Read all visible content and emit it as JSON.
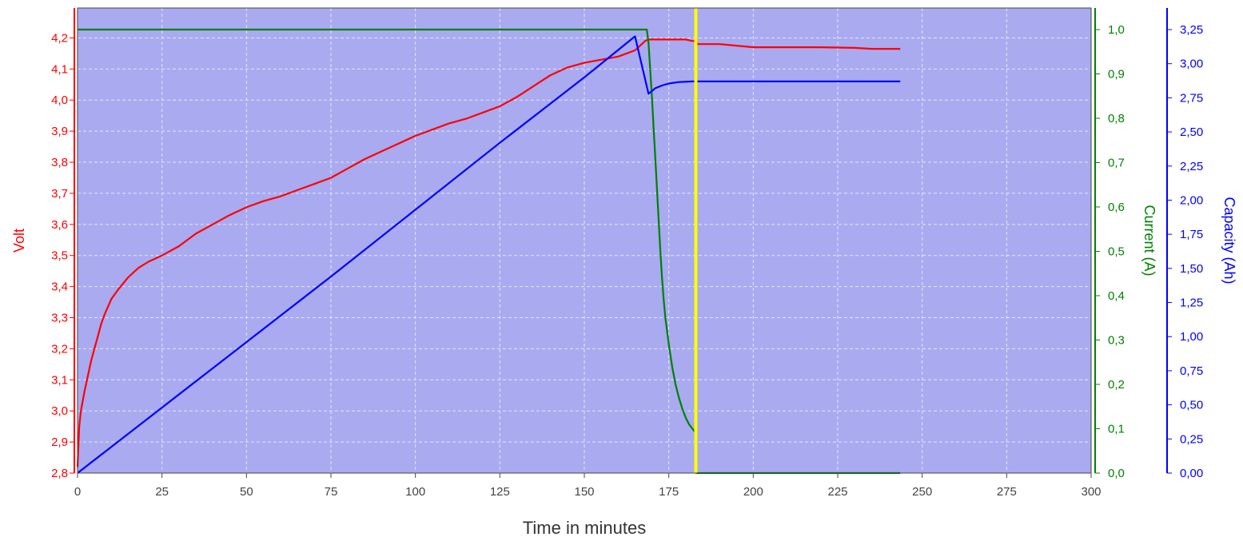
{
  "chart_data": {
    "type": "line",
    "xlabel": "Time in minutes",
    "xlim": [
      0,
      300
    ],
    "x_ticks": [
      "0",
      "25",
      "50",
      "75",
      "100",
      "125",
      "150",
      "175",
      "200",
      "225",
      "250",
      "275",
      "300"
    ],
    "x_tick_values": [
      0,
      25,
      50,
      75,
      100,
      125,
      150,
      175,
      200,
      225,
      250,
      275,
      300
    ],
    "grid": true,
    "axes": {
      "volt": {
        "label": "Volt",
        "color": "#ff0000",
        "side": "left",
        "ylim": [
          2.8,
          4.25
        ],
        "ticks": [
          "2,8",
          "2,9",
          "3,0",
          "3,1",
          "3,2",
          "3,3",
          "3,4",
          "3,5",
          "3,6",
          "3,7",
          "3,8",
          "3,9",
          "4,0",
          "4,1",
          "4,2"
        ],
        "tick_values": [
          2.8,
          2.9,
          3.0,
          3.1,
          3.2,
          3.3,
          3.4,
          3.5,
          3.6,
          3.7,
          3.8,
          3.9,
          4.0,
          4.1,
          4.2
        ]
      },
      "current": {
        "label": "Current (A)",
        "color": "#008000",
        "side": "right",
        "ylim": [
          0,
          1.0
        ],
        "ticks": [
          "0,0",
          "0,1",
          "0,2",
          "0,3",
          "0,4",
          "0,5",
          "0,6",
          "0,7",
          "0,8",
          "0,9",
          "1,0"
        ],
        "tick_values": [
          0,
          0.1,
          0.2,
          0.3,
          0.4,
          0.5,
          0.6,
          0.7,
          0.8,
          0.9,
          1.0
        ]
      },
      "capacity": {
        "label": "Capacity (Ah)",
        "color": "#0000ff",
        "side": "right",
        "ylim": [
          0,
          3.25
        ],
        "ticks": [
          "0,00",
          "0,25",
          "0,50",
          "0,75",
          "1,00",
          "1,25",
          "1,50",
          "1,75",
          "2,00",
          "2,25",
          "2,50",
          "2,75",
          "3,00",
          "3,25"
        ],
        "tick_values": [
          0,
          0.25,
          0.5,
          0.75,
          1.0,
          1.25,
          1.5,
          1.75,
          2.0,
          2.25,
          2.5,
          2.75,
          3.0,
          3.25
        ]
      }
    },
    "series": [
      {
        "axis": "volt",
        "color": "#ff0000",
        "x": [
          0,
          0.5,
          1,
          2,
          3,
          4,
          5,
          6,
          7,
          8,
          10,
          12,
          15,
          18,
          21,
          25,
          30,
          35,
          40,
          45,
          50,
          55,
          60,
          65,
          70,
          75,
          80,
          85,
          90,
          95,
          100,
          105,
          110,
          115,
          120,
          125,
          130,
          135,
          140,
          145,
          150,
          155,
          160,
          165,
          168,
          169,
          170,
          172,
          175,
          180,
          182,
          183,
          183.5,
          185,
          190,
          200,
          210,
          220,
          230,
          235,
          240,
          243.5
        ],
        "y": [
          2.82,
          2.95,
          3.0,
          3.06,
          3.11,
          3.16,
          3.2,
          3.24,
          3.28,
          3.31,
          3.36,
          3.39,
          3.43,
          3.46,
          3.48,
          3.5,
          3.53,
          3.57,
          3.6,
          3.63,
          3.655,
          3.675,
          3.69,
          3.71,
          3.73,
          3.75,
          3.78,
          3.81,
          3.835,
          3.86,
          3.885,
          3.905,
          3.925,
          3.94,
          3.96,
          3.98,
          4.01,
          4.045,
          4.08,
          4.105,
          4.12,
          4.13,
          4.14,
          4.16,
          4.19,
          4.195,
          4.195,
          4.195,
          4.195,
          4.195,
          4.19,
          4.19,
          4.18,
          4.18,
          4.18,
          4.17,
          4.17,
          4.17,
          4.168,
          4.165,
          4.165,
          4.165
        ]
      },
      {
        "axis": "current",
        "color": "#008000",
        "x": [
          0,
          168.5,
          169,
          169.5,
          170,
          170.5,
          171,
          171.5,
          172,
          172.5,
          173,
          173.5,
          174,
          175,
          176,
          177,
          178,
          179,
          180,
          181,
          182,
          182.5,
          183,
          183.1,
          183.5,
          243.5
        ],
        "y": [
          1.0,
          1.0,
          0.97,
          0.91,
          0.85,
          0.78,
          0.71,
          0.64,
          0.57,
          0.5,
          0.44,
          0.39,
          0.35,
          0.29,
          0.24,
          0.2,
          0.17,
          0.145,
          0.125,
          0.11,
          0.1,
          0.095,
          0.09,
          0.0,
          0.0,
          0.0
        ]
      },
      {
        "axis": "capacity",
        "color": "#0000ff",
        "x": [
          0,
          25,
          50,
          75,
          100,
          125,
          150,
          165,
          169,
          171,
          173,
          175,
          178,
          182,
          185,
          200,
          243.5
        ],
        "y": [
          0,
          0.48,
          0.96,
          1.44,
          1.93,
          2.42,
          2.9,
          3.2,
          2.78,
          2.82,
          2.84,
          2.855,
          2.865,
          2.87,
          2.87,
          2.87,
          2.87
        ]
      }
    ],
    "vertical_marker": {
      "x": 183,
      "color": "#ffff00"
    }
  }
}
